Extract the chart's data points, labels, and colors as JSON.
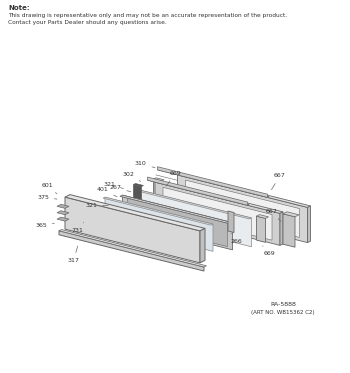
{
  "note_line1": "Note:",
  "note_line2": "This drawing is representative only and may not be an accurate representation of the product.",
  "note_line3": "Contact your Parts Dealer should any questions arise.",
  "footer_line1": "RA-5888",
  "footer_line2": "(ART NO. WB15362 C2)",
  "bg_color": "#ffffff",
  "lc": "#666666",
  "tc": "#333333",
  "fig_w": 3.5,
  "fig_h": 3.73,
  "dpi": 100
}
